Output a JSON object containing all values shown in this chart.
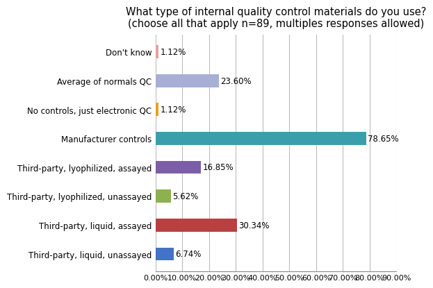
{
  "title": "What type of internal quality control materials do you use?\n(choose all that apply n=89, multiples responses allowed)",
  "categories": [
    "Don't know",
    "Average of normals QC",
    "No controls, just electronic QC",
    "Manufacturer controls",
    "Third-party, lyophilized, assayed",
    "Third-party, lyophilized, unassayed",
    "Third-party, liquid, assayed",
    "Third-party, liquid, unassayed"
  ],
  "values": [
    1.12,
    23.6,
    1.12,
    78.65,
    16.85,
    5.62,
    30.34,
    6.74
  ],
  "bar_colors": [
    "#e6a0a0",
    "#a8afd4",
    "#e8a020",
    "#3a9faa",
    "#7b5ea7",
    "#8db050",
    "#b84040",
    "#4472c4"
  ],
  "labels": [
    "1.12%",
    "23.60%",
    "1.12%",
    "78.65%",
    "16.85%",
    "5.62%",
    "30.34%",
    "6.74%"
  ],
  "xlim": [
    0,
    90
  ],
  "xticks": [
    0,
    10,
    20,
    30,
    40,
    50,
    60,
    70,
    80,
    90
  ],
  "xtick_labels": [
    "0.00%",
    "10.00%",
    "20.00%",
    "30.00%",
    "40.00%",
    "50.00%",
    "60.00%",
    "70.00%",
    "80.00%",
    "90.00%"
  ],
  "title_fontsize": 10.5,
  "label_fontsize": 8.5,
  "tick_fontsize": 8,
  "bar_label_fontsize": 8.5,
  "background_color": "#ffffff",
  "grid_color": "#bbbbbb",
  "bar_height": 0.45
}
